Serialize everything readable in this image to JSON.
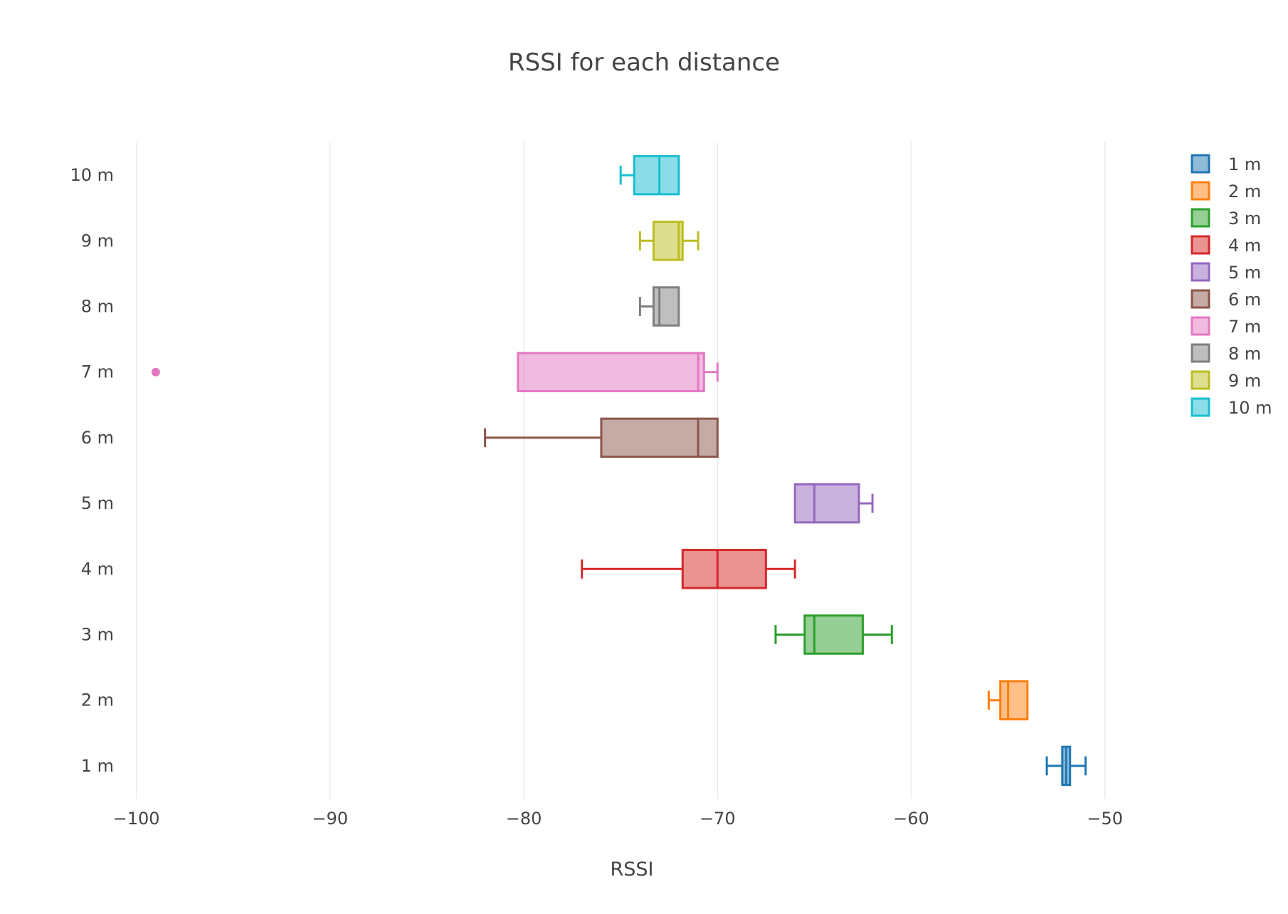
{
  "chart_data": {
    "type": "box",
    "orientation": "horizontal",
    "title": "RSSI for each distance",
    "xlabel": "RSSI",
    "ylabel": "",
    "xlim": [
      -100.5,
      -46.5
    ],
    "x_ticks": [
      -100,
      -90,
      -80,
      -70,
      -60,
      -50
    ],
    "x_tick_labels": [
      "−100",
      "−90",
      "−80",
      "−70",
      "−60",
      "−50"
    ],
    "categories": [
      "1 m",
      "2 m",
      "3 m",
      "4 m",
      "5 m",
      "6 m",
      "7 m",
      "8 m",
      "9 m",
      "10 m"
    ],
    "grid": "vertical",
    "legend_position": "top-right",
    "series": [
      {
        "name": "1 m",
        "color": "#1f77b4",
        "min": -53,
        "q1": -52.2,
        "median": -52,
        "q3": -51.8,
        "max": -51,
        "outliers": []
      },
      {
        "name": "2 m",
        "color": "#ff7f0e",
        "min": -56,
        "q1": -55.4,
        "median": -55,
        "q3": -54,
        "max": -54,
        "outliers": []
      },
      {
        "name": "3 m",
        "color": "#2ca02c",
        "min": -67,
        "q1": -65.5,
        "median": -65,
        "q3": -62.5,
        "max": -61,
        "outliers": []
      },
      {
        "name": "4 m",
        "color": "#d62728",
        "min": -77,
        "q1": -71.8,
        "median": -70,
        "q3": -67.5,
        "max": -66,
        "outliers": []
      },
      {
        "name": "5 m",
        "color": "#9467bd",
        "min": -66,
        "q1": -66,
        "median": -65,
        "q3": -62.7,
        "max": -62,
        "outliers": []
      },
      {
        "name": "6 m",
        "color": "#8c564b",
        "min": -82,
        "q1": -76,
        "median": -71,
        "q3": -70,
        "max": -70,
        "outliers": []
      },
      {
        "name": "7 m",
        "color": "#e377c2",
        "min": -80.3,
        "q1": -80.3,
        "median": -71,
        "q3": -70.7,
        "max": -70,
        "outliers": [
          -99
        ]
      },
      {
        "name": "8 m",
        "color": "#7f7f7f",
        "min": -74,
        "q1": -73.3,
        "median": -73,
        "q3": -72,
        "max": -72,
        "outliers": []
      },
      {
        "name": "9 m",
        "color": "#bcbd22",
        "min": -74,
        "q1": -73.3,
        "median": -72,
        "q3": -71.8,
        "max": -71,
        "outliers": []
      },
      {
        "name": "10 m",
        "color": "#17becf",
        "min": -75,
        "q1": -74.3,
        "median": -73,
        "q3": -72,
        "max": -72,
        "outliers": []
      }
    ]
  }
}
